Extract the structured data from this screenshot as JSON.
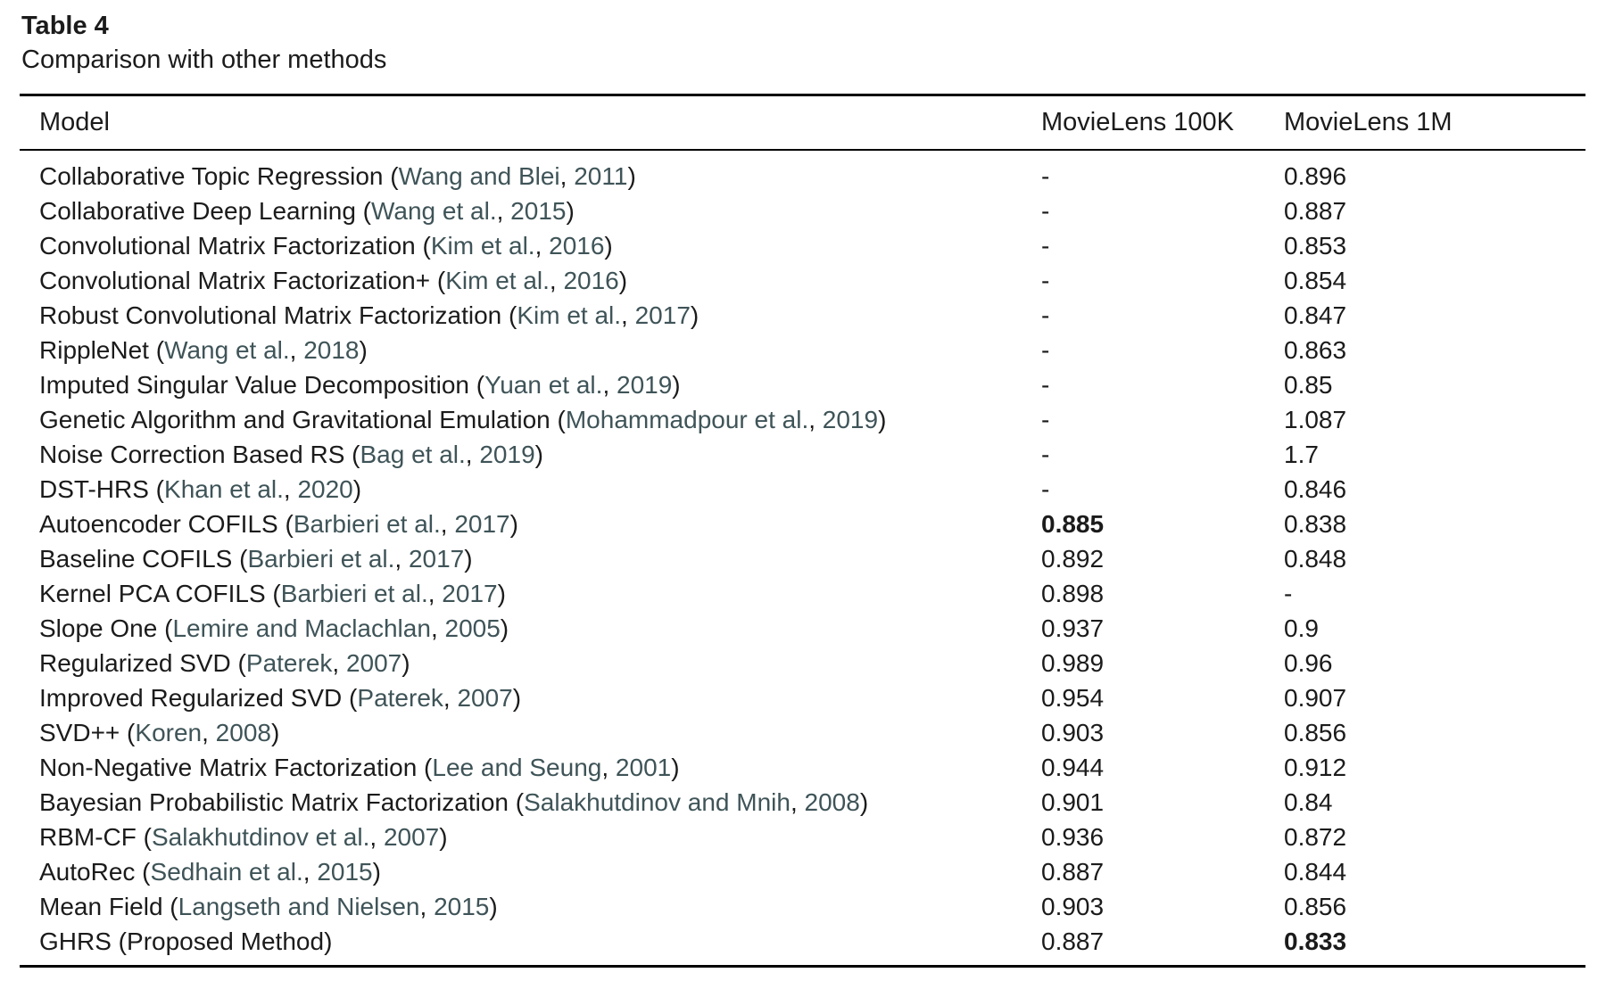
{
  "caption": {
    "label": "Table 4",
    "title": "Comparison with other methods"
  },
  "punct": {
    "open": " (",
    "comma": ", ",
    "close": ")"
  },
  "colors": {
    "citation_link": "#3f5458",
    "body_text": "#1b1b1b"
  },
  "table": {
    "columns": [
      "Model",
      "MovieLens 100K",
      "MovieLens 1M"
    ],
    "rows": [
      {
        "model": "Collaborative Topic Regression",
        "cite": "Wang and Blei",
        "year": "2011",
        "ml100k": "-",
        "ml1m": "0.896",
        "bold100k": false,
        "bold1m": false
      },
      {
        "model": "Collaborative Deep Learning",
        "cite": "Wang et al.",
        "year": "2015",
        "ml100k": "-",
        "ml1m": "0.887",
        "bold100k": false,
        "bold1m": false
      },
      {
        "model": "Convolutional Matrix Factorization",
        "cite": "Kim et al.",
        "year": "2016",
        "ml100k": "-",
        "ml1m": "0.853",
        "bold100k": false,
        "bold1m": false
      },
      {
        "model": "Convolutional Matrix Factorization+",
        "cite": "Kim et al.",
        "year": "2016",
        "ml100k": "-",
        "ml1m": "0.854",
        "bold100k": false,
        "bold1m": false
      },
      {
        "model": "Robust Convolutional Matrix Factorization",
        "cite": "Kim et al.",
        "year": "2017",
        "ml100k": "-",
        "ml1m": "0.847",
        "bold100k": false,
        "bold1m": false
      },
      {
        "model": "RippleNet",
        "cite": "Wang et al.",
        "year": "2018",
        "ml100k": "-",
        "ml1m": "0.863",
        "bold100k": false,
        "bold1m": false
      },
      {
        "model": "Imputed Singular Value Decomposition",
        "cite": "Yuan et al.",
        "year": "2019",
        "ml100k": "-",
        "ml1m": "0.85",
        "bold100k": false,
        "bold1m": false
      },
      {
        "model": "Genetic Algorithm and Gravitational Emulation",
        "cite": "Mohammadpour et al.",
        "year": "2019",
        "ml100k": "-",
        "ml1m": "1.087",
        "bold100k": false,
        "bold1m": false
      },
      {
        "model": "Noise Correction Based RS",
        "cite": "Bag et al.",
        "year": "2019",
        "ml100k": "-",
        "ml1m": "1.7",
        "bold100k": false,
        "bold1m": false
      },
      {
        "model": "DST-HRS",
        "cite": "Khan et al.",
        "year": "2020",
        "ml100k": "-",
        "ml1m": "0.846",
        "bold100k": false,
        "bold1m": false
      },
      {
        "model": "Autoencoder COFILS",
        "cite": "Barbieri et al.",
        "year": "2017",
        "ml100k": "0.885",
        "ml1m": "0.838",
        "bold100k": true,
        "bold1m": false
      },
      {
        "model": "Baseline COFILS",
        "cite": "Barbieri et al.",
        "year": "2017",
        "ml100k": "0.892",
        "ml1m": "0.848",
        "bold100k": false,
        "bold1m": false
      },
      {
        "model": "Kernel PCA COFILS",
        "cite": "Barbieri et al.",
        "year": "2017",
        "ml100k": "0.898",
        "ml1m": "-",
        "bold100k": false,
        "bold1m": false
      },
      {
        "model": "Slope One",
        "cite": "Lemire and Maclachlan",
        "year": "2005",
        "ml100k": "0.937",
        "ml1m": "0.9",
        "bold100k": false,
        "bold1m": false
      },
      {
        "model": "Regularized SVD",
        "cite": "Paterek",
        "year": "2007",
        "ml100k": "0.989",
        "ml1m": "0.96",
        "bold100k": false,
        "bold1m": false
      },
      {
        "model": "Improved Regularized SVD",
        "cite": "Paterek",
        "year": "2007",
        "ml100k": "0.954",
        "ml1m": "0.907",
        "bold100k": false,
        "bold1m": false
      },
      {
        "model": "SVD++",
        "cite": "Koren",
        "year": "2008",
        "ml100k": "0.903",
        "ml1m": "0.856",
        "bold100k": false,
        "bold1m": false
      },
      {
        "model": "Non-Negative Matrix Factorization",
        "cite": "Lee and Seung",
        "year": "2001",
        "ml100k": "0.944",
        "ml1m": "0.912",
        "bold100k": false,
        "bold1m": false
      },
      {
        "model": "Bayesian Probabilistic Matrix Factorization",
        "cite": "Salakhutdinov and Mnih",
        "year": "2008",
        "ml100k": "0.901",
        "ml1m": "0.84",
        "bold100k": false,
        "bold1m": false
      },
      {
        "model": "RBM-CF",
        "cite": "Salakhutdinov et al.",
        "year": "2007",
        "ml100k": "0.936",
        "ml1m": "0.872",
        "bold100k": false,
        "bold1m": false
      },
      {
        "model": "AutoRec",
        "cite": "Sedhain et al.",
        "year": "2015",
        "ml100k": "0.887",
        "ml1m": "0.844",
        "bold100k": false,
        "bold1m": false
      },
      {
        "model": "Mean Field",
        "cite": "Langseth and Nielsen",
        "year": "2015",
        "ml100k": "0.903",
        "ml1m": "0.856",
        "bold100k": false,
        "bold1m": false
      },
      {
        "model": "GHRS",
        "note": "Proposed Method",
        "ml100k": "0.887",
        "ml1m": "0.833",
        "bold100k": false,
        "bold1m": true
      }
    ]
  }
}
